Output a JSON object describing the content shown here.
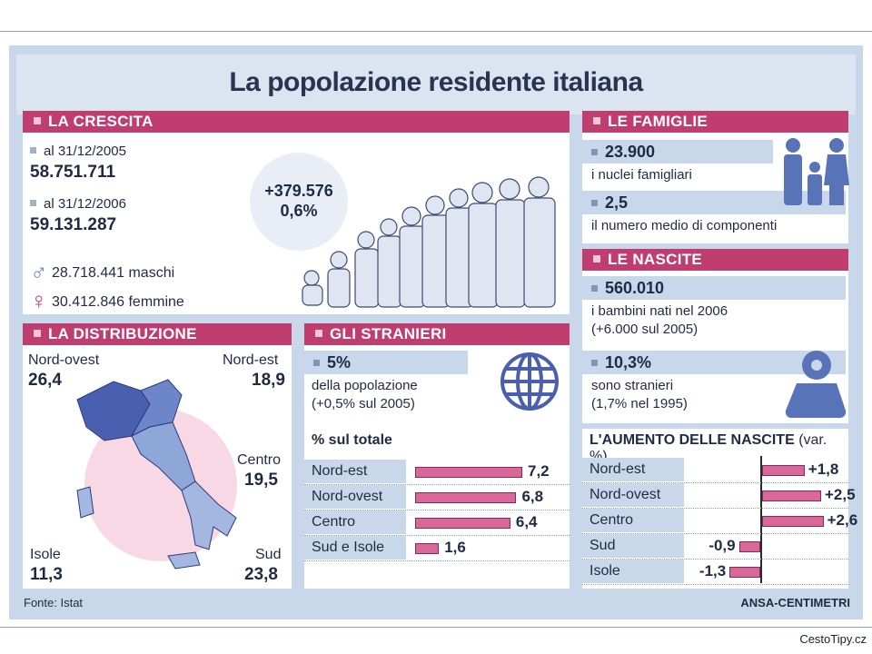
{
  "title": "La popolazione residente italiana",
  "crescita": {
    "header": "LA CRESCITA",
    "date1_label": "al 31/12/2005",
    "date1_value": "58.751.711",
    "date2_label": "al 31/12/2006",
    "date2_value": "59.131.287",
    "increase_abs": "+379.576",
    "increase_pct": "0,6%",
    "male_symbol": "♂",
    "male_text": "28.718.441 maschi",
    "female_symbol": "♀",
    "female_text": "30.412.846 femmine"
  },
  "famiglie": {
    "header": "LE FAMIGLIE",
    "nuclei_value": "23.900",
    "nuclei_text": "i nuclei famigliari",
    "componenti_value": "2,5",
    "componenti_text": "il numero medio di componenti"
  },
  "nascite": {
    "header": "LE NASCITE",
    "born_value": "560.010",
    "born_text1": "i bambini nati nel 2006",
    "born_text2": "(+6.000 sul 2005)",
    "foreign_value": "10,3%",
    "foreign_text1": "sono stranieri",
    "foreign_text2": "(1,7% nel 1995)"
  },
  "distribuzione": {
    "header": "LA DISTRIBUZIONE",
    "regions": [
      {
        "name": "Nord-ovest",
        "value": "26,4"
      },
      {
        "name": "Nord-est",
        "value": "18,9"
      },
      {
        "name": "Centro",
        "value": "19,5"
      },
      {
        "name": "Isole",
        "value": "11,3"
      },
      {
        "name": "Sud",
        "value": "23,8"
      }
    ]
  },
  "stranieri": {
    "header": "GLI STRANIERI",
    "pct_value": "5%",
    "pct_text1": "della popolazione",
    "pct_text2": "(+0,5% sul 2005)"
  },
  "colors": {
    "band": "#bf3d6f",
    "bar": "#d8679a",
    "panel_blue": "#c9d7ea",
    "map_dark": "#4a5fb0",
    "map_light": "#8fa6d8"
  },
  "icons": [
    "family-icon",
    "baby-icon",
    "globe-icon",
    "crowd-illustration",
    "male-symbol-icon",
    "female-symbol-icon"
  ],
  "chart_data": [
    {
      "type": "bar",
      "title": "% sul totale",
      "categories": [
        "Nord-est",
        "Nord-ovest",
        "Centro",
        "Sud e Isole"
      ],
      "values": [
        7.2,
        6.8,
        6.4,
        1.6
      ],
      "value_labels": [
        "7,2",
        "6,8",
        "6,4",
        "1,6"
      ],
      "xlim": [
        0,
        7.2
      ]
    },
    {
      "type": "bar",
      "title": "L'AUMENTO DELLE NASCITE",
      "title_suffix": "(var. %)",
      "categories": [
        "Nord-est",
        "Nord-ovest",
        "Centro",
        "Sud",
        "Isole"
      ],
      "values": [
        1.8,
        2.5,
        2.6,
        -0.9,
        -1.3
      ],
      "value_labels": [
        "+1,8",
        "+2,5",
        "+2,6",
        "-0,9",
        "-1,3"
      ],
      "xlim": [
        -1.3,
        2.6
      ]
    }
  ],
  "footer": {
    "source": "Fonte: Istat",
    "agency": "ANSA-CENTIMETRI",
    "credit": "CestoTipy.cz"
  }
}
